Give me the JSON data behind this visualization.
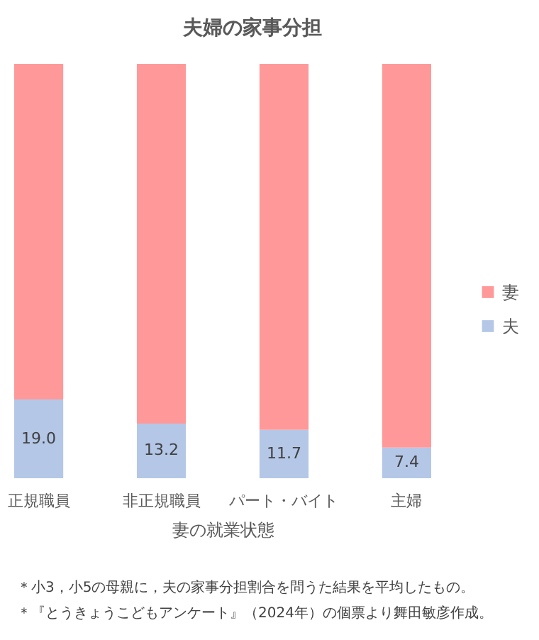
{
  "chart_data": {
    "type": "bar",
    "title": "夫婦の家事分担",
    "xlabel": "妻の就業状態",
    "categories": [
      "正規職員",
      "非正規職員",
      "パート・バイト",
      "主婦"
    ],
    "stacked": true,
    "ylim": [
      0,
      100
    ],
    "tick_labels": "x",
    "legend": "right",
    "series": [
      {
        "name": "夫",
        "color": "#b4c7e7",
        "values": [
          19.0,
          13.2,
          11.7,
          7.4
        ],
        "value_labels": [
          "19.0",
          "13.2",
          "11.7",
          "7.4"
        ]
      },
      {
        "name": "妻",
        "color": "#ff9999",
        "values": [
          81.0,
          86.8,
          88.3,
          92.6
        ]
      }
    ],
    "annotations": [
      "＊小3，小5の母親に，夫の家事分担割合を問うた結果を平均したもの。",
      "＊『とうきょうこどもアンケート』（2024年）の個票より舞田敏彦作成。"
    ]
  }
}
